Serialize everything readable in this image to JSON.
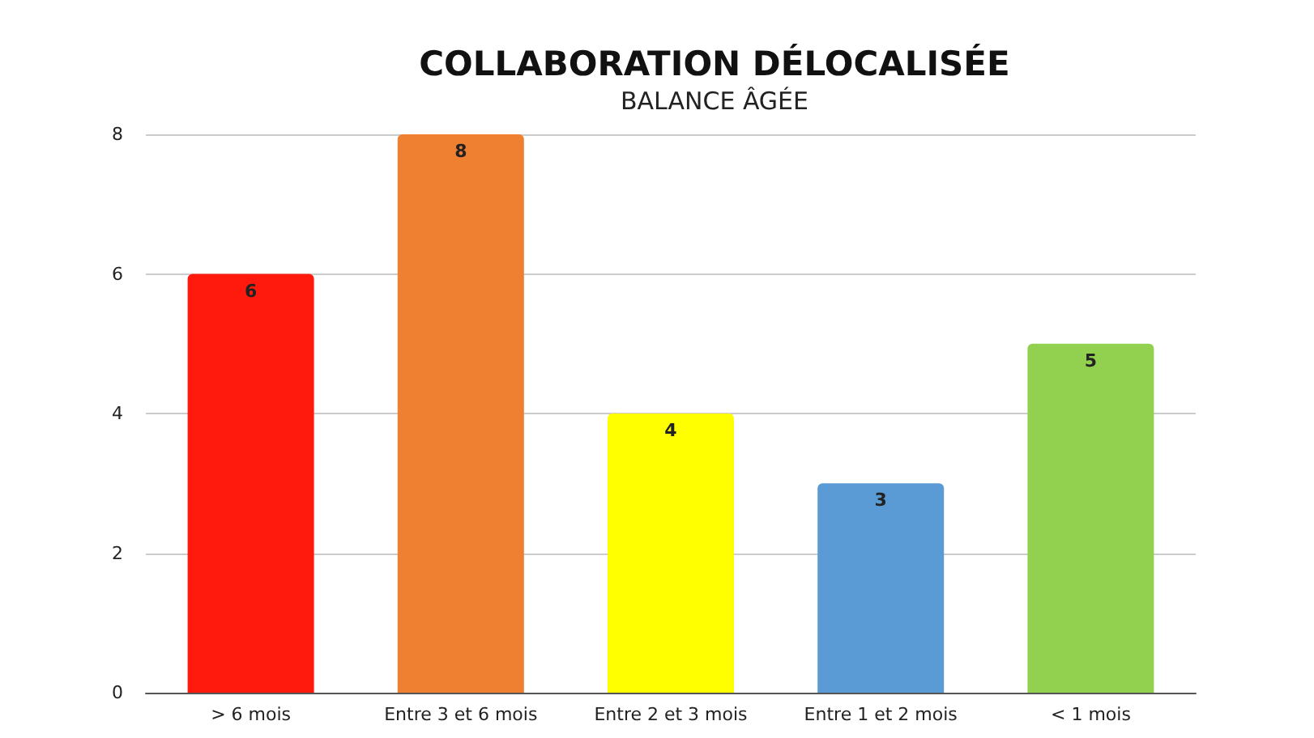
{
  "chart_data": {
    "type": "bar",
    "title": "COLLABORATION DÉLOCALISÉE",
    "subtitle": "BALANCE ÂGÉE",
    "categories": [
      "> 6 mois",
      "Entre 3 et 6 mois",
      "Entre 2 et 3 mois",
      "Entre 1 et 2 mois",
      "< 1 mois"
    ],
    "values": [
      6,
      8,
      4,
      3,
      5
    ],
    "colors": [
      "#ff1a0d",
      "#ef7f31",
      "#ffff00",
      "#5b9bd5",
      "#92d050"
    ],
    "ylim": [
      0,
      8
    ],
    "yticks": [
      0,
      2,
      4,
      6,
      8
    ],
    "grid": "y",
    "data_labels": true
  }
}
